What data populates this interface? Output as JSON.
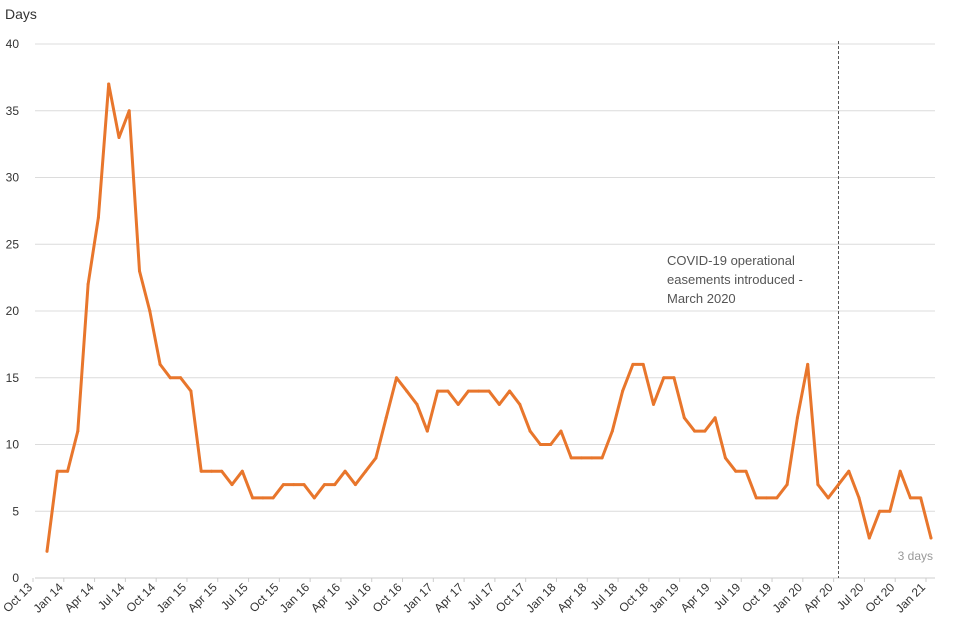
{
  "chart_data": {
    "type": "line",
    "ylabel": "Days",
    "ylim": [
      0,
      40
    ],
    "y_ticks": [
      0,
      5,
      10,
      15,
      20,
      25,
      30,
      35,
      40
    ],
    "x_tick_labels": [
      "Oct 13",
      "Jan 14",
      "Apr 14",
      "Jul 14",
      "Oct 14",
      "Jan 15",
      "Apr 15",
      "Jul 15",
      "Oct 15",
      "Jan 16",
      "Apr 16",
      "Jul 16",
      "Oct 16",
      "Jan 17",
      "Apr 17",
      "Jul 17",
      "Oct 17",
      "Jan 18",
      "Apr 18",
      "Jul 18",
      "Oct 18",
      "Jan 19",
      "Apr 19",
      "Jul 19",
      "Oct 19",
      "Jan 20",
      "Apr 20",
      "Jul 20",
      "Oct 20",
      "Jan 21"
    ],
    "x_start": "Oct 13",
    "x_end": "Jan 21",
    "grid": "horizontal",
    "series": [
      {
        "color": "#e8762c",
        "values": [
          2,
          8,
          8,
          11,
          22,
          27,
          37,
          33,
          35,
          23,
          20,
          16,
          15,
          15,
          14,
          8,
          8,
          8,
          7,
          8,
          6,
          6,
          6,
          7,
          7,
          7,
          6,
          7,
          7,
          8,
          7,
          8,
          9,
          12,
          15,
          14,
          13,
          11,
          14,
          14,
          13,
          14,
          14,
          14,
          13,
          14,
          13,
          11,
          10,
          10,
          11,
          9,
          9,
          9,
          9,
          11,
          14,
          16,
          16,
          13,
          15,
          15,
          12,
          11,
          11,
          12,
          9,
          8,
          8,
          6,
          6,
          6,
          7,
          12,
          16,
          7,
          6,
          7,
          8,
          6,
          3,
          5,
          5,
          8,
          6,
          6,
          3
        ]
      }
    ],
    "annotations": [
      {
        "x": "Mar 20",
        "lines": [
          "COVID-19 operational",
          "easements introduced -",
          "March 2020"
        ]
      }
    ],
    "end_label": "3 days"
  }
}
